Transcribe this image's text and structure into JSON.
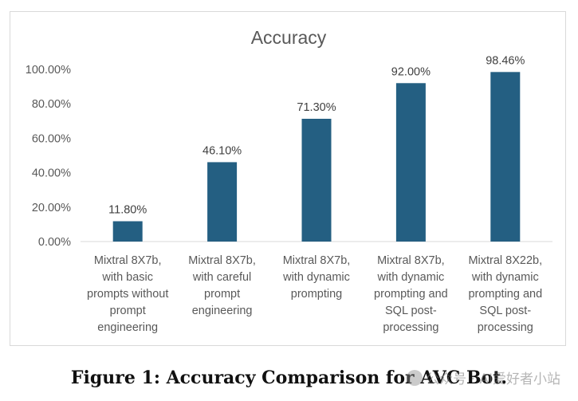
{
  "chart_data": {
    "type": "bar",
    "title": "Accuracy",
    "categories": [
      [
        "Mixtral 8X7b,",
        "with basic",
        "prompts without",
        "prompt",
        "engineering"
      ],
      [
        "Mixtral 8X7b,",
        "with careful",
        "prompt",
        "engineering"
      ],
      [
        "Mixtral 8X7b,",
        "with dynamic",
        "prompting"
      ],
      [
        "Mixtral 8X7b,",
        "with dynamic",
        "prompting and",
        "SQL post-",
        "processing"
      ],
      [
        "Mixtral 8X22b,",
        "with dynamic",
        "prompting and",
        "SQL post-",
        "processing"
      ]
    ],
    "values": [
      11.8,
      46.1,
      71.3,
      92.0,
      98.46
    ],
    "data_labels": [
      "11.80%",
      "46.10%",
      "71.30%",
      "92.00%",
      "98.46%"
    ],
    "y_ticks": [
      0,
      20,
      40,
      60,
      80,
      100
    ],
    "y_tick_labels": [
      "0.00%",
      "20.00%",
      "40.00%",
      "60.00%",
      "80.00%",
      "100.00%"
    ],
    "ylim": [
      0,
      100
    ],
    "grid": false,
    "xlabel": "",
    "ylabel": "",
    "colors": {
      "bar": "#245F82",
      "axis": "#d9d9d9",
      "text": "#595959",
      "title": "#595959",
      "label": "#404040"
    }
  },
  "caption": "Figure 1: Accuracy Comparison for AVC Bot.",
  "watermark": "公众号 · AI爱好者小站"
}
